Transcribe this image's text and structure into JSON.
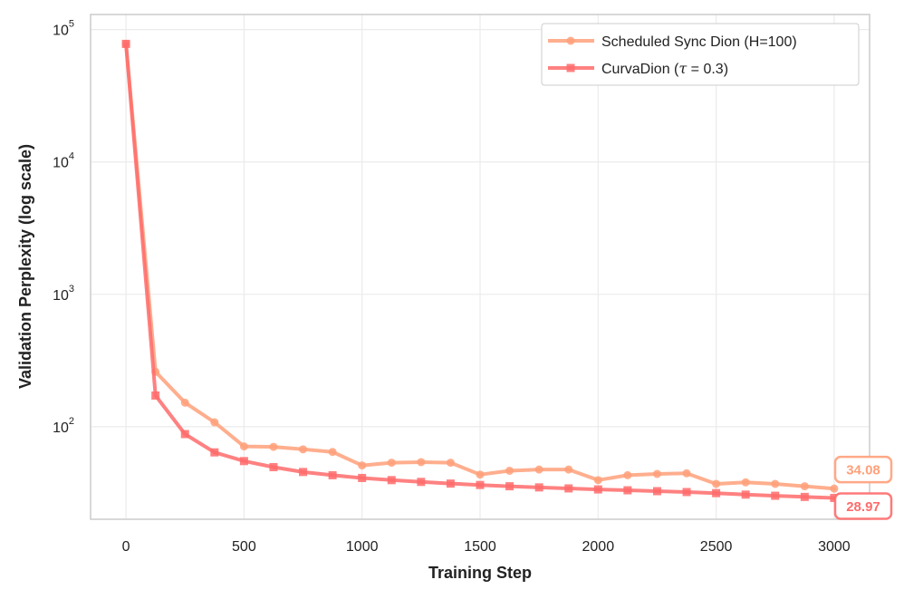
{
  "chart_data": {
    "type": "line",
    "xlabel": "Training Step",
    "ylabel": "Validation Perplexity (log scale)",
    "yscale": "log",
    "xlim": [
      -150,
      3150
    ],
    "ylim": [
      20,
      130000
    ],
    "grid": true,
    "legend_position": "top-right",
    "x_ticks": [
      0,
      500,
      1000,
      1500,
      2000,
      2500,
      3000
    ],
    "y_ticks": [
      {
        "value": 100,
        "base": "10",
        "exp": "2"
      },
      {
        "value": 1000,
        "base": "10",
        "exp": "3"
      },
      {
        "value": 10000,
        "base": "10",
        "exp": "4"
      },
      {
        "value": 100000,
        "base": "10",
        "exp": "5"
      }
    ],
    "x": [
      0,
      125,
      250,
      375,
      500,
      625,
      750,
      875,
      1000,
      1125,
      1250,
      1375,
      1500,
      1625,
      1750,
      1875,
      2000,
      2125,
      2250,
      2375,
      2500,
      2625,
      2750,
      2875,
      3000
    ],
    "series": [
      {
        "name": "Scheduled Sync Dion (H=100)",
        "color": "#FFA07A",
        "marker": "circle",
        "values": [
          78000,
          260,
          152,
          108,
          71,
          70.5,
          67.5,
          64.5,
          51,
          53.5,
          54,
          53.5,
          43.5,
          46.5,
          47.5,
          47.5,
          39.5,
          43,
          44,
          44.5,
          37,
          38,
          37,
          35.5,
          34.08
        ],
        "end_label": "34.08"
      },
      {
        "name": "CurvaDion (τ = 0.3)",
        "legend_prefix": "CurvaDion (",
        "legend_symbol": "τ",
        "legend_suffix": " = 0.3)",
        "color": "#FF6B6B",
        "marker": "square",
        "values": [
          78000,
          172,
          88,
          64,
          55,
          49.5,
          45.5,
          43,
          41,
          39.5,
          38.3,
          37.2,
          36.3,
          35.5,
          34.8,
          34.2,
          33.6,
          33.1,
          32.6,
          32.1,
          31.5,
          30.7,
          30.1,
          29.5,
          28.97
        ],
        "end_label": "28.97"
      }
    ]
  }
}
